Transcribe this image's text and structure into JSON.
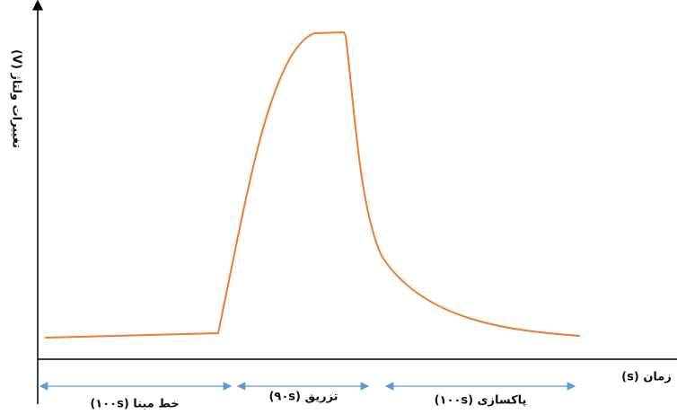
{
  "axes": {
    "y_label": "تغییرات ولتاژ (V)",
    "x_label": "زمان (s)"
  },
  "phases": [
    {
      "label": "خط مبنا (۱۰۰s)"
    },
    {
      "label": "تزریق (۹۰s)"
    },
    {
      "label": "پاکسازی (۱۰۰s)"
    }
  ]
}
